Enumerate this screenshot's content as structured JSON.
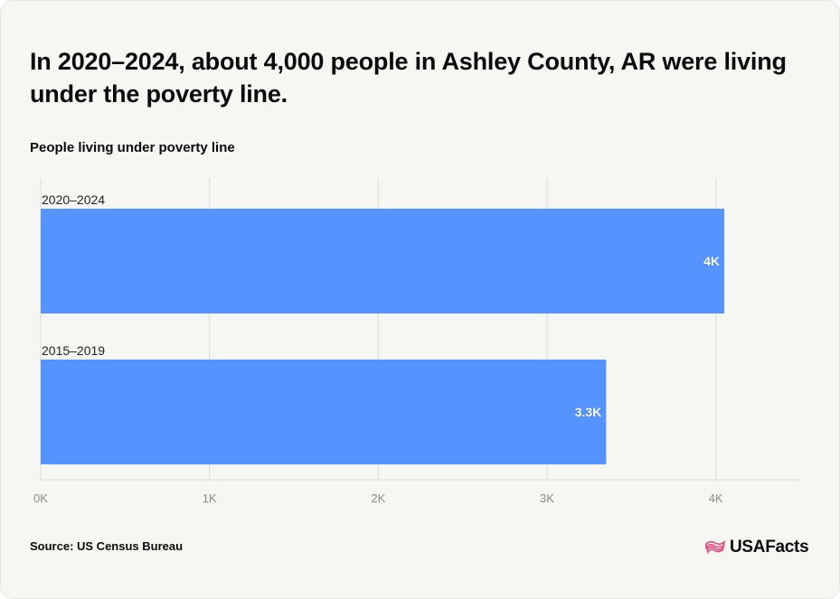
{
  "header": {
    "title": "In 2020–2024, about 4,000 people in Ashley County, AR were living under the poverty line.",
    "subtitle": "People living under poverty line"
  },
  "footer": {
    "source": "Source: US Census Bureau",
    "brand": "USAFacts"
  },
  "colors": {
    "bar": "#5593fe",
    "grid": "#dcdcd6",
    "axis_text": "#8a8a8a",
    "label_text": "#222222"
  },
  "chart_data": {
    "type": "bar",
    "orientation": "horizontal",
    "title": "In 2020–2024, about 4,000 people in Ashley County, AR were living under the poverty line.",
    "ylabel": "People living under poverty line",
    "categories": [
      "2020–2024",
      "2015–2019"
    ],
    "values": [
      4050,
      3350
    ],
    "data_labels": [
      "4K",
      "3.3K"
    ],
    "xlim": [
      0,
      4500
    ],
    "xticks": [
      0,
      1000,
      2000,
      3000,
      4000
    ],
    "xtick_labels": [
      "0K",
      "1K",
      "2K",
      "3K",
      "4K"
    ],
    "grid": true
  }
}
